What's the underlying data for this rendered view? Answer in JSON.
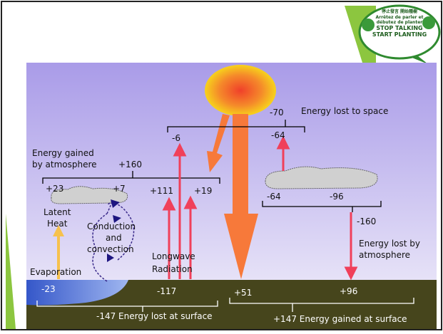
{
  "logo": {
    "lines": [
      "停止發言 開始種樹",
      "Arrêtez de parler et",
      "débutez de planter",
      "STOP TALKING",
      "START PLANTING"
    ]
  },
  "diagram": {
    "space_value": "-70",
    "space_label": "Energy lost to space",
    "atm_to_space_left": "-6",
    "atm_to_space_right": "-64",
    "gained_label": [
      "Energy gained",
      "by atmosphere"
    ],
    "gained_value": "+160",
    "left_cloud": [
      "+23",
      "+7",
      "+111",
      "+19"
    ],
    "right_cloud": [
      "-64",
      "-96"
    ],
    "latent": [
      "Latent",
      "Heat"
    ],
    "conduction": [
      "Conduction",
      "and",
      "convection"
    ],
    "atm_lost_value": "-160",
    "atm_lost_label": [
      "Energy lost by",
      "atmosphere"
    ],
    "longwave": [
      "Longwave",
      "Radiation"
    ],
    "evaporation": "Evaporation",
    "surface": [
      "-23",
      "-117",
      "+51",
      "+96"
    ],
    "surface_lost": "-147 Energy lost at surface",
    "surface_gained": "+147 Energy gained at surface"
  }
}
